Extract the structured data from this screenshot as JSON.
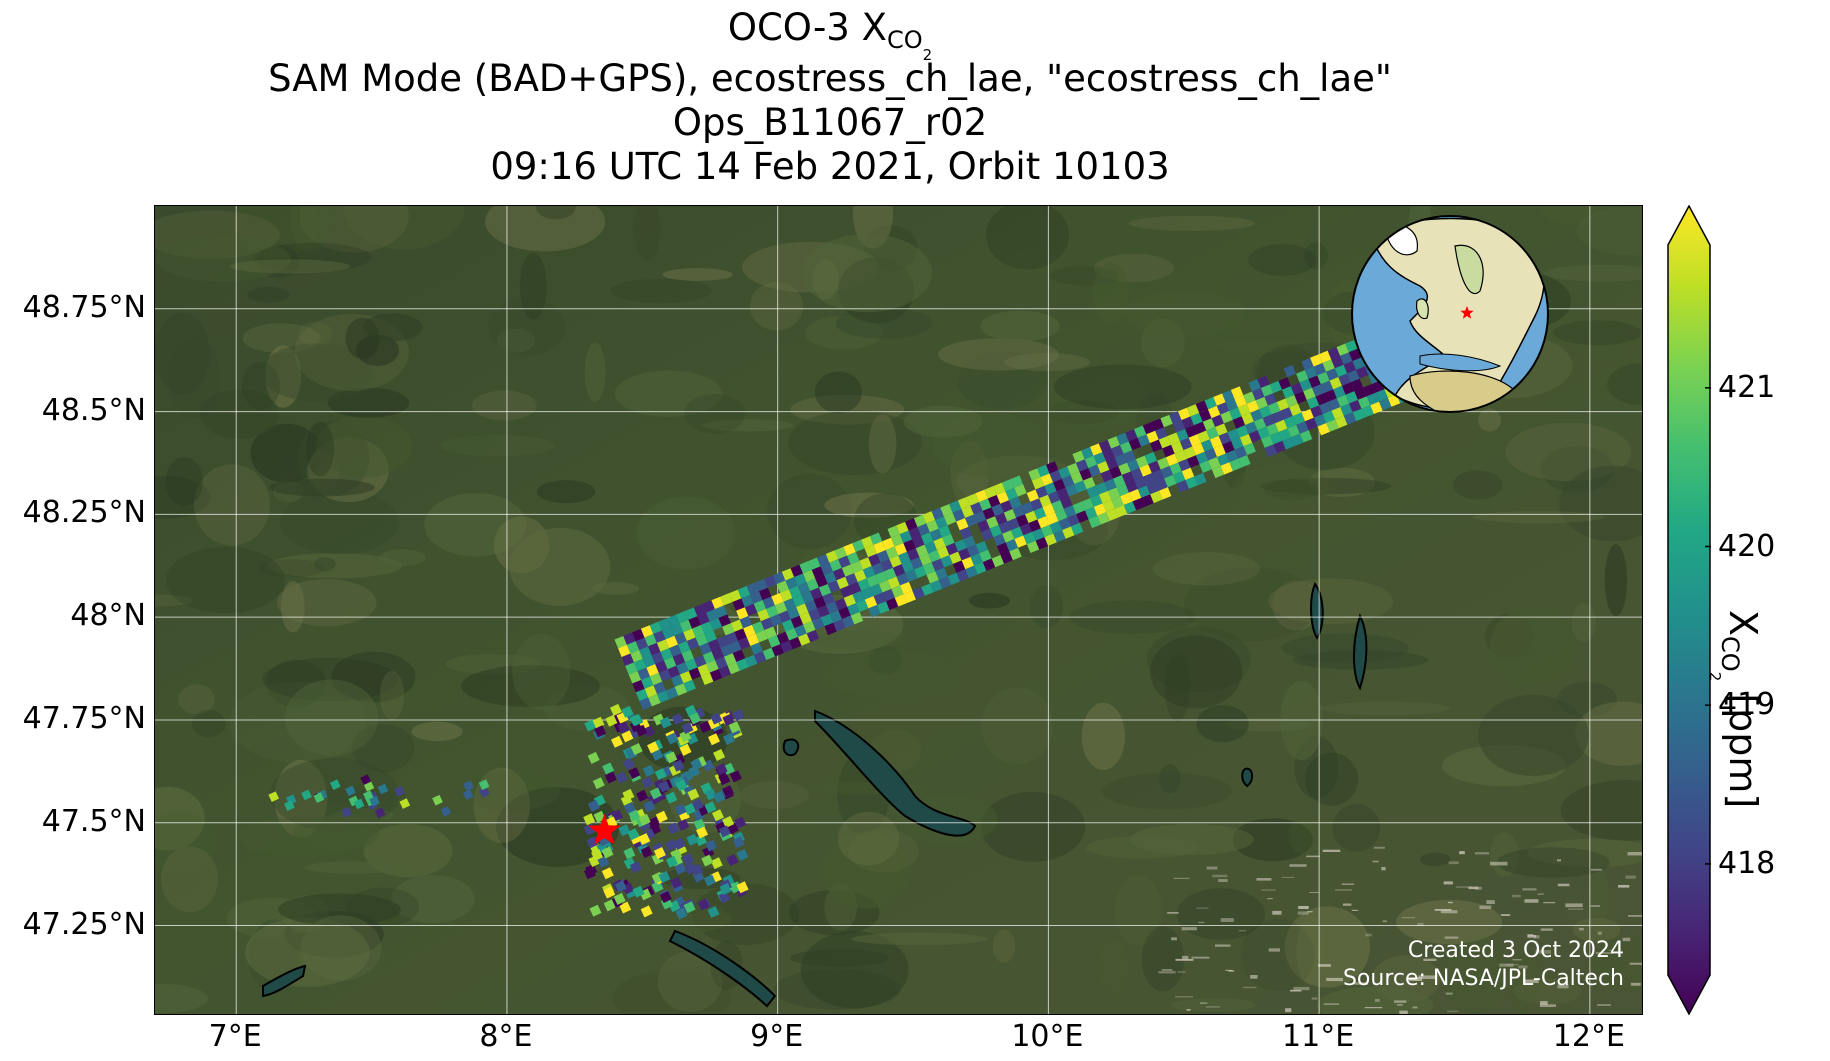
{
  "title": {
    "line1_prefix": "OCO-3 X",
    "line1_sub": "CO",
    "line1_subsub": "2",
    "line2": "SAM Mode (BAD+GPS), ecostress_ch_lae, \"ecostress_ch_lae\"",
    "line3": "Ops_B11067_r02",
    "line4": "09:16 UTC 14 Feb 2021, Orbit 10103"
  },
  "map": {
    "extent": {
      "lon_min": 6.7,
      "lon_max": 12.2,
      "lat_min": 47.03,
      "lat_max": 49.0
    },
    "lat_ticks": [
      {
        "value": 48.75,
        "label": "48.75°N"
      },
      {
        "value": 48.5,
        "label": "48.5°N"
      },
      {
        "value": 48.25,
        "label": "48.25°N"
      },
      {
        "value": 48.0,
        "label": "48°N"
      },
      {
        "value": 47.75,
        "label": "47.75°N"
      },
      {
        "value": 47.5,
        "label": "47.5°N"
      },
      {
        "value": 47.25,
        "label": "47.25°N"
      }
    ],
    "lon_ticks": [
      {
        "value": 7,
        "label": "7°E"
      },
      {
        "value": 8,
        "label": "8°E"
      },
      {
        "value": 9,
        "label": "9°E"
      },
      {
        "value": 10,
        "label": "10°E"
      },
      {
        "value": 11,
        "label": "11°E"
      },
      {
        "value": 12,
        "label": "12°E"
      }
    ],
    "target": {
      "lon": 8.36,
      "lat": 47.48,
      "marker": "red-star"
    },
    "credit_line1": "Created 3 Oct 2024",
    "credit_line2": "Source: NASA/JPL-Caltech",
    "inset_globe": {
      "center_lon": 8.4,
      "center_lat": 47.5
    }
  },
  "colorbar": {
    "colormap": "viridis",
    "min": 417.3,
    "max": 421.9,
    "extend": "both",
    "ticks": [
      418,
      419,
      420,
      421
    ],
    "label_prefix": "X",
    "label_sub": "CO",
    "label_subsub": "2",
    "label_suffix": " [ppm]"
  },
  "colors": {
    "star": "#ff0000",
    "grid": "#ffffff",
    "lake_fill": "#1f4a47",
    "ocean": "#6aa9d8",
    "land": "#e8e2b8"
  }
}
